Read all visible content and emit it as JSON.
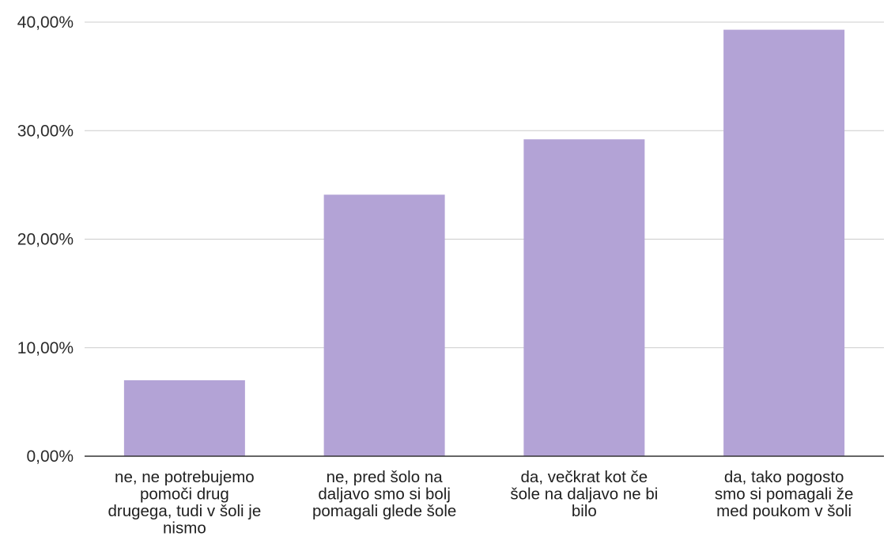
{
  "chart_data": {
    "type": "bar",
    "categories": [
      [
        "ne, ne potrebujemo",
        "pomoči drug",
        "drugega, tudi v šoli je",
        "nismo"
      ],
      [
        "ne, pred šolo na",
        "daljavo smo si bolj",
        "pomagali glede šole"
      ],
      [
        "da, večkrat kot če",
        "šole na daljavo ne bi",
        "bilo"
      ],
      [
        "da, tako pogosto",
        "smo si pomagali že",
        "med poukom v šoli"
      ]
    ],
    "values": [
      7.0,
      24.1,
      29.2,
      39.3
    ],
    "ylim": [
      0,
      40
    ],
    "yticks": [
      0,
      10,
      20,
      30,
      40
    ],
    "ytick_labels": [
      "0,00%",
      "10,00%",
      "20,00%",
      "30,00%",
      "40,00%"
    ],
    "title": "",
    "xlabel": "",
    "ylabel": "",
    "grid": true,
    "legend": "none",
    "bar_color": "#b3a3d6",
    "grid_color": "#cccccc",
    "axis_color": "#333333"
  }
}
